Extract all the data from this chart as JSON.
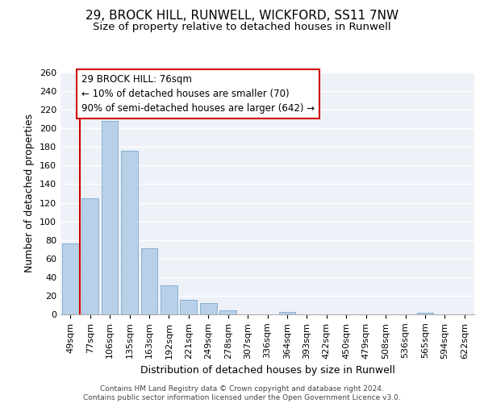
{
  "title1": "29, BROCK HILL, RUNWELL, WICKFORD, SS11 7NW",
  "title2": "Size of property relative to detached houses in Runwell",
  "xlabel": "Distribution of detached houses by size in Runwell",
  "ylabel": "Number of detached properties",
  "categories": [
    "49sqm",
    "77sqm",
    "106sqm",
    "135sqm",
    "163sqm",
    "192sqm",
    "221sqm",
    "249sqm",
    "278sqm",
    "307sqm",
    "336sqm",
    "364sqm",
    "393sqm",
    "422sqm",
    "450sqm",
    "479sqm",
    "508sqm",
    "536sqm",
    "565sqm",
    "594sqm",
    "622sqm"
  ],
  "values": [
    76,
    125,
    208,
    176,
    71,
    31,
    16,
    12,
    4,
    0,
    0,
    3,
    0,
    0,
    0,
    0,
    0,
    0,
    2,
    0,
    0
  ],
  "bar_color": "#b8d0e8",
  "bar_edge_color": "#7aaad0",
  "background_color": "#eef2f8",
  "grid_color": "#ffffff",
  "annotation_line1": "29 BROCK HILL: 76sqm",
  "annotation_line2": "← 10% of detached houses are smaller (70)",
  "annotation_line3": "90% of semi-detached houses are larger (642) →",
  "annotation_box_color": "#ffffff",
  "annotation_box_edge_color": "#cc0000",
  "redline_color": "#cc0000",
  "redline_x": 0.5,
  "ylim": [
    0,
    260
  ],
  "yticks": [
    0,
    20,
    40,
    60,
    80,
    100,
    120,
    140,
    160,
    180,
    200,
    220,
    240,
    260
  ],
  "footer": "Contains HM Land Registry data © Crown copyright and database right 2024.\nContains public sector information licensed under the Open Government Licence v3.0.",
  "title_fontsize": 11,
  "subtitle_fontsize": 9.5,
  "tick_fontsize": 8,
  "ylabel_fontsize": 9,
  "xlabel_fontsize": 9,
  "annotation_fontsize": 8.5
}
